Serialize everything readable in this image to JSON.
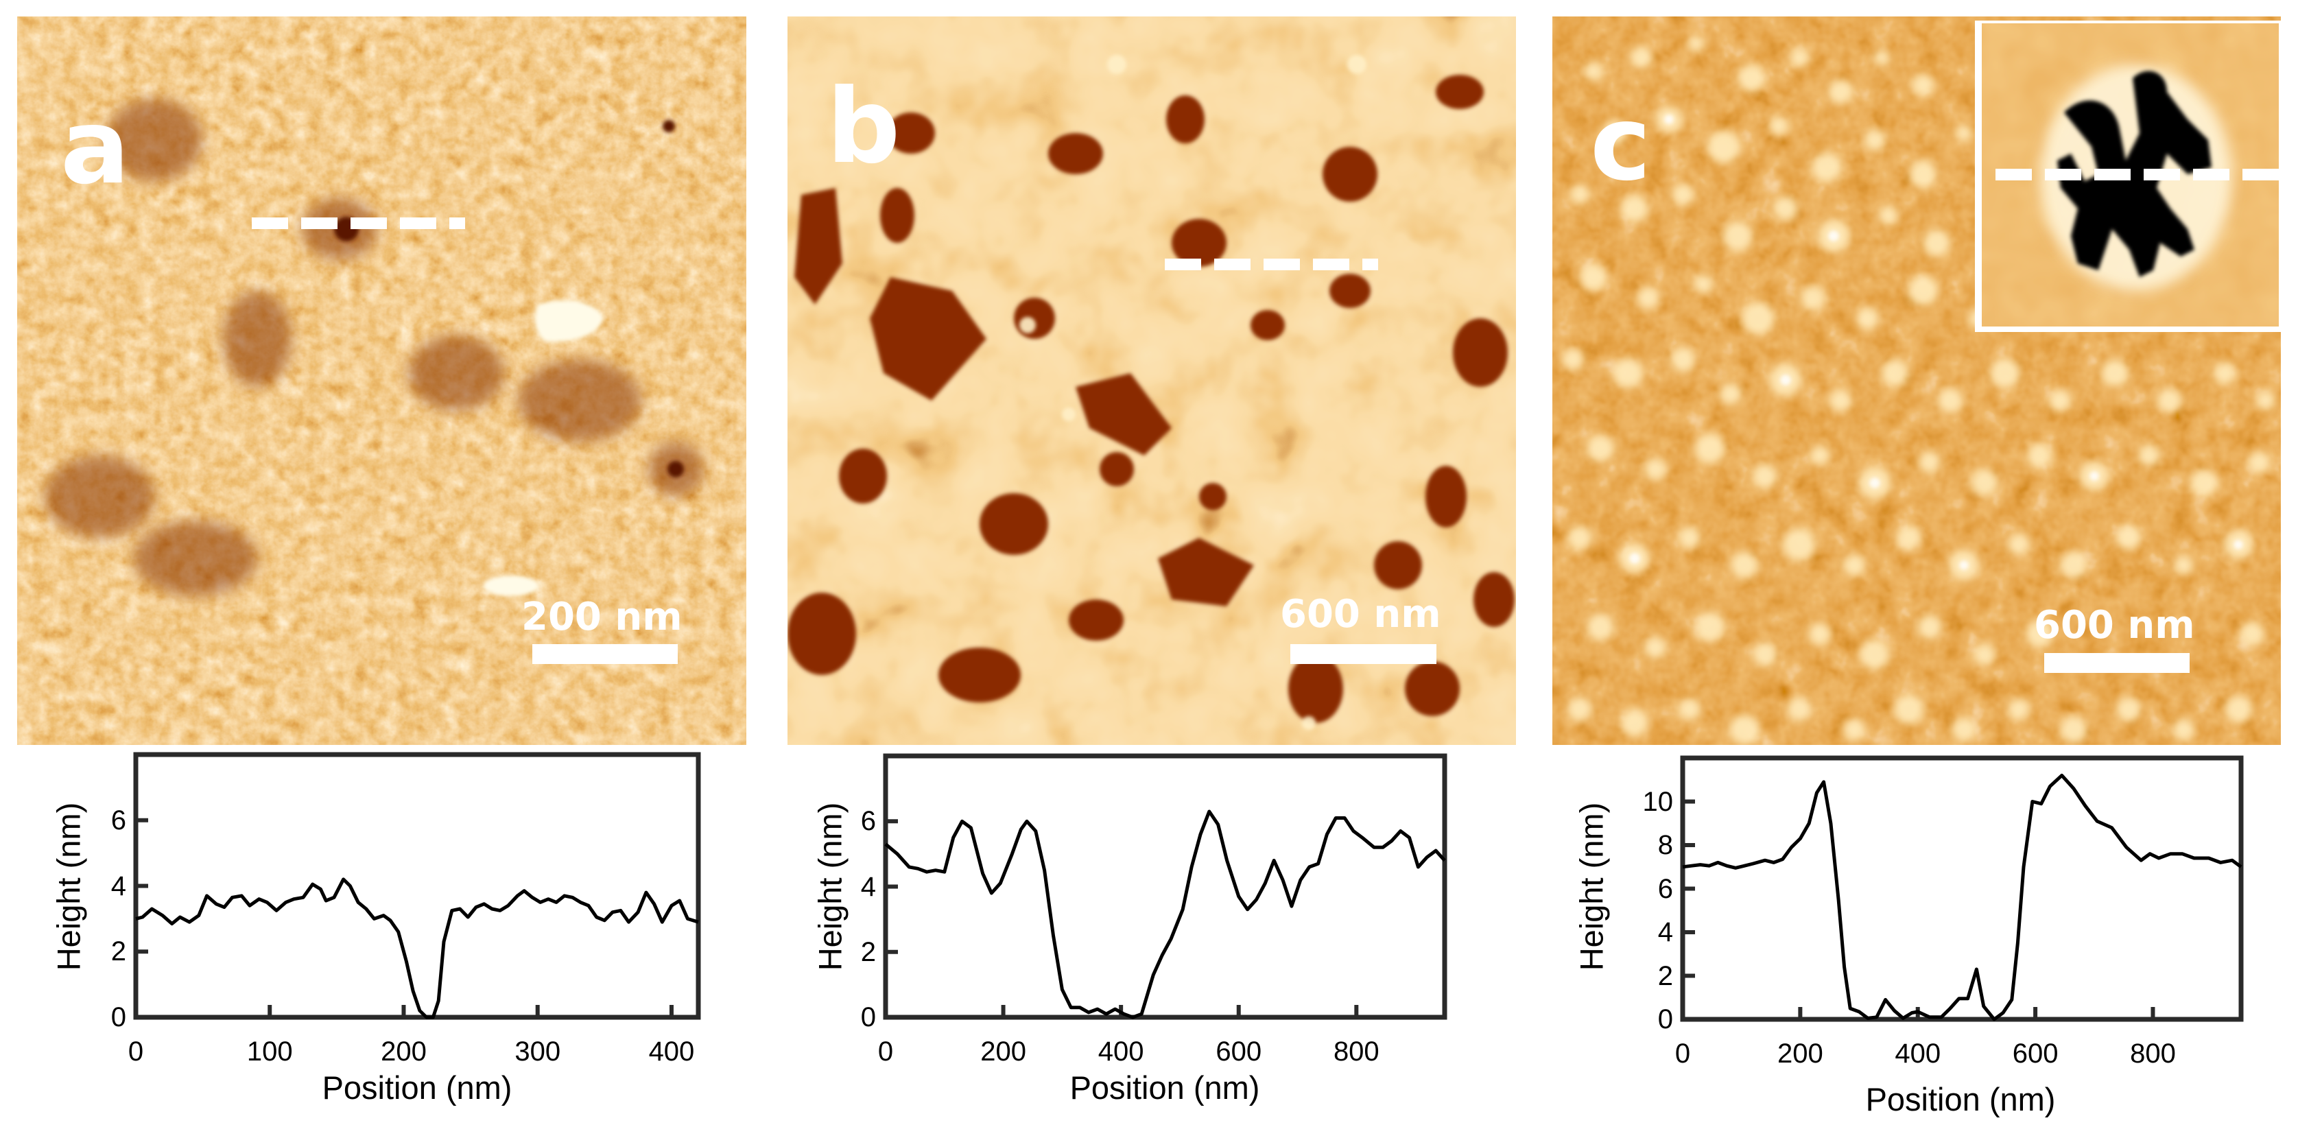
{
  "figure": {
    "panels": [
      {
        "id": "a",
        "letter": "a",
        "scale_bar_label": "200 nm",
        "profile_line": "dashed",
        "inset": false
      },
      {
        "id": "b",
        "letter": "b",
        "scale_bar_label": "600 nm",
        "profile_line": "dashed",
        "inset": false
      },
      {
        "id": "c",
        "letter": "c",
        "scale_bar_label": "600 nm",
        "profile_line": "dashed (in inset)",
        "inset": true
      }
    ],
    "colors": {
      "afm_dark": "#7a2e00",
      "afm_mid": "#d9822b",
      "afm_light": "#fff3dc",
      "line": "#000000",
      "frame": "#2a2a2a"
    }
  },
  "chart_data": [
    {
      "type": "line",
      "panel": "a",
      "title": "",
      "xlabel": "Position (nm)",
      "ylabel": "Height (nm)",
      "xlim": [
        0,
        420
      ],
      "ylim": [
        0,
        8
      ],
      "xticks": [
        0,
        100,
        200,
        300,
        400
      ],
      "yticks": [
        0,
        2,
        4,
        6
      ],
      "grid": false,
      "legend": null,
      "x": [
        0,
        5,
        12,
        20,
        27,
        33,
        40,
        47,
        53,
        60,
        66,
        72,
        79,
        85,
        92,
        98,
        105,
        112,
        118,
        125,
        132,
        138,
        142,
        148,
        155,
        160,
        166,
        172,
        178,
        185,
        190,
        196,
        202,
        207,
        212,
        217,
        222,
        226,
        230,
        236,
        242,
        248,
        254,
        260,
        266,
        272,
        278,
        285,
        290,
        296,
        302,
        308,
        314,
        320,
        326,
        332,
        338,
        344,
        350,
        356,
        362,
        368,
        375,
        381,
        387,
        393,
        400,
        406,
        412,
        420
      ],
      "values": [
        3.0,
        3.05,
        3.3,
        3.1,
        2.85,
        3.05,
        2.9,
        3.1,
        3.7,
        3.45,
        3.35,
        3.65,
        3.7,
        3.4,
        3.6,
        3.5,
        3.25,
        3.5,
        3.6,
        3.65,
        4.05,
        3.9,
        3.55,
        3.65,
        4.2,
        4.0,
        3.5,
        3.3,
        3.0,
        3.1,
        2.95,
        2.6,
        1.7,
        0.8,
        0.2,
        0.0,
        0.0,
        0.5,
        2.3,
        3.25,
        3.3,
        3.05,
        3.35,
        3.45,
        3.3,
        3.25,
        3.4,
        3.7,
        3.85,
        3.65,
        3.5,
        3.6,
        3.5,
        3.7,
        3.65,
        3.5,
        3.4,
        3.05,
        2.95,
        3.2,
        3.25,
        2.9,
        3.2,
        3.8,
        3.45,
        2.9,
        3.4,
        3.55,
        3.0,
        2.9
      ]
    },
    {
      "type": "line",
      "panel": "b",
      "title": "",
      "xlabel": "Position (nm)",
      "ylabel": "Height (nm)",
      "xlim": [
        0,
        950
      ],
      "ylim": [
        0,
        8
      ],
      "xticks": [
        0,
        200,
        400,
        600,
        800
      ],
      "yticks": [
        0,
        2,
        4,
        6
      ],
      "grid": false,
      "legend": null,
      "x": [
        0,
        20,
        40,
        55,
        70,
        85,
        100,
        115,
        130,
        145,
        165,
        180,
        195,
        215,
        230,
        240,
        255,
        270,
        285,
        300,
        315,
        330,
        345,
        360,
        375,
        390,
        405,
        420,
        435,
        455,
        470,
        485,
        505,
        520,
        535,
        550,
        565,
        580,
        600,
        615,
        630,
        645,
        660,
        675,
        690,
        705,
        720,
        735,
        750,
        765,
        780,
        795,
        810,
        830,
        845,
        860,
        875,
        890,
        905,
        920,
        935,
        950
      ],
      "values": [
        5.3,
        5.0,
        4.6,
        4.55,
        4.45,
        4.5,
        4.45,
        5.5,
        6.0,
        5.8,
        4.4,
        3.8,
        4.1,
        5.0,
        5.75,
        6.0,
        5.7,
        4.5,
        2.5,
        0.85,
        0.3,
        0.3,
        0.15,
        0.25,
        0.1,
        0.25,
        0.1,
        0.0,
        0.1,
        1.3,
        1.9,
        2.4,
        3.3,
        4.6,
        5.6,
        6.3,
        5.9,
        4.8,
        3.7,
        3.3,
        3.6,
        4.1,
        4.8,
        4.2,
        3.4,
        4.2,
        4.6,
        4.7,
        5.6,
        6.1,
        6.1,
        5.7,
        5.5,
        5.2,
        5.2,
        5.4,
        5.7,
        5.5,
        4.6,
        4.9,
        5.1,
        4.8
      ]
    },
    {
      "type": "line",
      "panel": "c",
      "title": "",
      "xlabel": "Position (nm)",
      "ylabel": "Height (nm)",
      "xlim": [
        0,
        950
      ],
      "ylim": [
        0,
        12
      ],
      "xticks": [
        0,
        200,
        400,
        600,
        800
      ],
      "yticks": [
        0,
        2,
        4,
        6,
        8,
        10
      ],
      "grid": false,
      "legend": null,
      "x": [
        0,
        15,
        30,
        45,
        60,
        75,
        90,
        105,
        120,
        140,
        155,
        170,
        185,
        200,
        215,
        228,
        240,
        252,
        265,
        275,
        285,
        300,
        315,
        330,
        345,
        360,
        375,
        390,
        400,
        420,
        440,
        455,
        470,
        485,
        500,
        512,
        530,
        545,
        560,
        570,
        580,
        595,
        610,
        625,
        645,
        665,
        685,
        705,
        730,
        755,
        780,
        795,
        810,
        830,
        850,
        870,
        895,
        915,
        935,
        950
      ],
      "values": [
        7.0,
        7.05,
        7.1,
        7.05,
        7.2,
        7.05,
        6.95,
        7.05,
        7.15,
        7.3,
        7.2,
        7.35,
        7.9,
        8.3,
        9.0,
        10.4,
        10.9,
        9.0,
        5.5,
        2.4,
        0.5,
        0.35,
        0.05,
        0.1,
        0.9,
        0.4,
        0.05,
        0.3,
        0.35,
        0.1,
        0.1,
        0.5,
        0.95,
        0.95,
        2.3,
        0.6,
        0.0,
        0.3,
        0.9,
        3.5,
        7.0,
        10.0,
        9.9,
        10.7,
        11.2,
        10.6,
        9.8,
        9.1,
        8.8,
        7.9,
        7.3,
        7.6,
        7.4,
        7.6,
        7.6,
        7.4,
        7.4,
        7.2,
        7.3,
        7.0
      ]
    }
  ]
}
